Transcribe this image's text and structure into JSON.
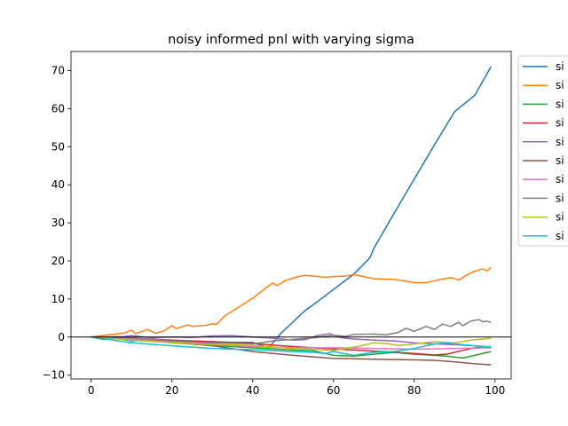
{
  "chart_data": {
    "type": "line",
    "title": "noisy informed pnl with varying sigma",
    "xlabel": "",
    "ylabel": "",
    "xlim": [
      -5,
      104
    ],
    "ylim": [
      -11,
      75
    ],
    "xticks": [
      0,
      20,
      40,
      60,
      80,
      100
    ],
    "yticks": [
      -10,
      0,
      10,
      20,
      30,
      40,
      50,
      60,
      70
    ],
    "grid": false,
    "legend": "right, outside plot area, entries clipped at figure edge",
    "reference_line": {
      "y": 0,
      "color": "#000000"
    },
    "series": [
      {
        "legend_label": "si",
        "color": "#1f77b4",
        "points": [
          [
            0,
            0
          ],
          [
            3,
            -0.6
          ],
          [
            6,
            -0.3
          ],
          [
            10,
            -1.0
          ],
          [
            15,
            -0.8
          ],
          [
            20,
            -1.2
          ],
          [
            25,
            -1.0
          ],
          [
            30,
            -1.2
          ],
          [
            35,
            -1.4
          ],
          [
            40,
            -1.4
          ],
          [
            44,
            -2.8
          ],
          [
            47,
            1.0
          ],
          [
            50,
            4.0
          ],
          [
            53,
            7.0
          ],
          [
            55,
            8.5
          ],
          [
            60,
            12.5
          ],
          [
            65,
            16.5
          ],
          [
            69,
            20.8
          ],
          [
            70,
            23.3
          ],
          [
            75,
            32.5
          ],
          [
            80,
            41.5
          ],
          [
            85,
            50.5
          ],
          [
            90,
            59.2
          ],
          [
            95,
            63.5
          ],
          [
            99,
            71.0
          ]
        ]
      },
      {
        "legend_label": "si",
        "color": "#ff7f0e",
        "points": [
          [
            0,
            0
          ],
          [
            5,
            0.7
          ],
          [
            8,
            1.0
          ],
          [
            10,
            1.8
          ],
          [
            11,
            0.9
          ],
          [
            14,
            2.0
          ],
          [
            16,
            1.0
          ],
          [
            18,
            1.6
          ],
          [
            20,
            3.0
          ],
          [
            21,
            2.2
          ],
          [
            24,
            3.2
          ],
          [
            25,
            2.8
          ],
          [
            28,
            3.0
          ],
          [
            30,
            3.5
          ],
          [
            31,
            3.3
          ],
          [
            33,
            5.5
          ],
          [
            36,
            7.5
          ],
          [
            40,
            10.2
          ],
          [
            44,
            13.5
          ],
          [
            45,
            14.2
          ],
          [
            46,
            13.5
          ],
          [
            48,
            14.8
          ],
          [
            51,
            15.8
          ],
          [
            53,
            16.2
          ],
          [
            55,
            16.0
          ],
          [
            58,
            15.7
          ],
          [
            60,
            15.9
          ],
          [
            63,
            16.0
          ],
          [
            65,
            16.4
          ],
          [
            67,
            16.0
          ],
          [
            70,
            15.3
          ],
          [
            75,
            15.1
          ],
          [
            78,
            14.7
          ],
          [
            80,
            14.3
          ],
          [
            83,
            14.3
          ],
          [
            86,
            15.0
          ],
          [
            89,
            15.6
          ],
          [
            91,
            15.0
          ],
          [
            93,
            16.3
          ],
          [
            95,
            17.3
          ],
          [
            97,
            17.9
          ],
          [
            98,
            17.4
          ],
          [
            99,
            18.3
          ]
        ]
      },
      {
        "legend_label": "si",
        "color": "#2ca02c",
        "points": [
          [
            0,
            0
          ],
          [
            10,
            -0.5
          ],
          [
            20,
            -1.5
          ],
          [
            30,
            -2.2
          ],
          [
            40,
            -2.8
          ],
          [
            50,
            -3.4
          ],
          [
            55,
            -3.6
          ],
          [
            60,
            -4.8
          ],
          [
            65,
            -5.0
          ],
          [
            70,
            -4.5
          ],
          [
            75,
            -4.0
          ],
          [
            80,
            -4.5
          ],
          [
            85,
            -4.8
          ],
          [
            88,
            -5.0
          ],
          [
            92,
            -5.5
          ],
          [
            95,
            -4.8
          ],
          [
            99,
            -3.8
          ]
        ]
      },
      {
        "legend_label": "si",
        "color": "#d62728",
        "points": [
          [
            0,
            0
          ],
          [
            10,
            -0.3
          ],
          [
            20,
            -0.8
          ],
          [
            30,
            -1.2
          ],
          [
            40,
            -1.7
          ],
          [
            50,
            -2.5
          ],
          [
            60,
            -3.1
          ],
          [
            70,
            -3.7
          ],
          [
            80,
            -4.3
          ],
          [
            85,
            -4.7
          ],
          [
            88,
            -4.5
          ],
          [
            92,
            -3.5
          ],
          [
            95,
            -2.8
          ],
          [
            99,
            -2.5
          ]
        ]
      },
      {
        "legend_label": "si",
        "color": "#9467bd",
        "points": [
          [
            0,
            0
          ],
          [
            8,
            0.1
          ],
          [
            10,
            0.4
          ],
          [
            15,
            -0.2
          ],
          [
            20,
            0.0
          ],
          [
            25,
            -0.1
          ],
          [
            30,
            0.3
          ],
          [
            35,
            0.4
          ],
          [
            40,
            0.0
          ],
          [
            45,
            -0.3
          ],
          [
            50,
            -0.8
          ],
          [
            53,
            -0.7
          ],
          [
            56,
            0.4
          ],
          [
            59,
            0.9
          ],
          [
            60,
            0.5
          ],
          [
            62,
            -0.2
          ],
          [
            65,
            -0.5
          ],
          [
            70,
            -0.8
          ],
          [
            75,
            -1.0
          ],
          [
            80,
            -1.5
          ],
          [
            85,
            -1.8
          ],
          [
            90,
            -2.0
          ],
          [
            95,
            -2.3
          ],
          [
            99,
            -2.8
          ]
        ]
      },
      {
        "legend_label": "si",
        "color": "#8c564b",
        "points": [
          [
            0,
            0
          ],
          [
            10,
            -0.5
          ],
          [
            20,
            -1.3
          ],
          [
            30,
            -2.3
          ],
          [
            40,
            -3.8
          ],
          [
            50,
            -4.8
          ],
          [
            60,
            -5.6
          ],
          [
            70,
            -5.8
          ],
          [
            80,
            -6.0
          ],
          [
            85,
            -6.1
          ],
          [
            90,
            -6.5
          ],
          [
            95,
            -7.0
          ],
          [
            99,
            -7.3
          ]
        ]
      },
      {
        "legend_label": "si",
        "color": "#e377c2",
        "points": [
          [
            0,
            0
          ],
          [
            10,
            -0.5
          ],
          [
            20,
            -1.2
          ],
          [
            30,
            -1.8
          ],
          [
            40,
            -2.5
          ],
          [
            50,
            -2.8
          ],
          [
            60,
            -2.8
          ],
          [
            70,
            -3.0
          ],
          [
            80,
            -3.2
          ],
          [
            90,
            -3.0
          ],
          [
            99,
            -2.8
          ]
        ]
      },
      {
        "legend_label": "si",
        "color": "#7f7f7f",
        "points": [
          [
            0,
            0
          ],
          [
            10,
            -0.2
          ],
          [
            20,
            -1.0
          ],
          [
            30,
            -1.5
          ],
          [
            40,
            -1.8
          ],
          [
            45,
            -1.0
          ],
          [
            50,
            -0.6
          ],
          [
            55,
            -0.2
          ],
          [
            60,
            0.5
          ],
          [
            63,
            0.2
          ],
          [
            65,
            0.7
          ],
          [
            70,
            0.8
          ],
          [
            73,
            0.6
          ],
          [
            76,
            1.2
          ],
          [
            78,
            2.3
          ],
          [
            80,
            1.5
          ],
          [
            83,
            2.8
          ],
          [
            85,
            2.0
          ],
          [
            87,
            3.4
          ],
          [
            89,
            2.8
          ],
          [
            91,
            3.9
          ],
          [
            92,
            3.0
          ],
          [
            94,
            4.2
          ],
          [
            96,
            4.6
          ],
          [
            97,
            4.0
          ],
          [
            98,
            4.2
          ],
          [
            99,
            3.8
          ]
        ]
      },
      {
        "legend_label": "si",
        "color": "#bcbd22",
        "points": [
          [
            0,
            0
          ],
          [
            10,
            -0.8
          ],
          [
            20,
            -1.5
          ],
          [
            30,
            -2.0
          ],
          [
            40,
            -2.2
          ],
          [
            50,
            -3.0
          ],
          [
            55,
            -3.2
          ],
          [
            60,
            -3.5
          ],
          [
            63,
            -3.0
          ],
          [
            66,
            -2.5
          ],
          [
            70,
            -1.5
          ],
          [
            74,
            -1.8
          ],
          [
            76,
            -2.2
          ],
          [
            80,
            -1.8
          ],
          [
            85,
            -1.2
          ],
          [
            90,
            -1.5
          ],
          [
            94,
            -0.8
          ],
          [
            99,
            -0.3
          ]
        ]
      },
      {
        "legend_label": "si",
        "color": "#17becf",
        "points": [
          [
            0,
            0
          ],
          [
            10,
            -1.5
          ],
          [
            20,
            -2.3
          ],
          [
            30,
            -3.0
          ],
          [
            40,
            -3.3
          ],
          [
            50,
            -3.8
          ],
          [
            55,
            -4.0
          ],
          [
            58,
            -4.3
          ],
          [
            60,
            -3.8
          ],
          [
            65,
            -4.8
          ],
          [
            70,
            -4.0
          ],
          [
            75,
            -3.8
          ],
          [
            80,
            -3.0
          ],
          [
            85,
            -1.8
          ],
          [
            88,
            -1.6
          ],
          [
            92,
            -2.0
          ],
          [
            99,
            -2.6
          ]
        ]
      }
    ]
  }
}
